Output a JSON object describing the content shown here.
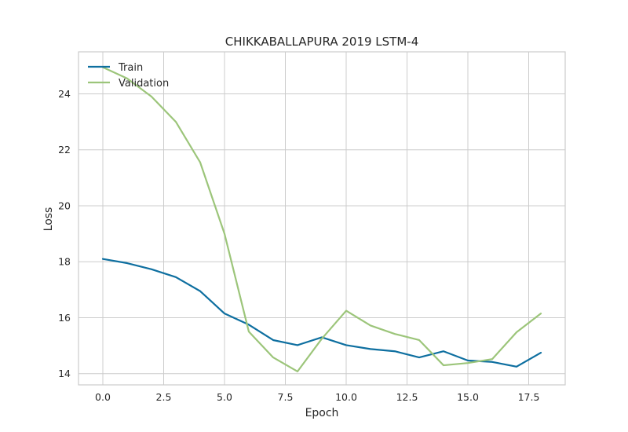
{
  "chart_data": {
    "type": "line",
    "title": "CHIKKABALLAPURA 2019 LSTM-4",
    "xlabel": "Epoch",
    "ylabel": "Loss",
    "xlim": [
      -1,
      19
    ],
    "ylim": [
      13.6,
      25.5
    ],
    "xticks": [
      0.0,
      2.5,
      5.0,
      7.5,
      10.0,
      12.5,
      15.0,
      17.5
    ],
    "xtick_labels": [
      "0.0",
      "2.5",
      "5.0",
      "7.5",
      "10.0",
      "12.5",
      "15.0",
      "17.5"
    ],
    "yticks": [
      14,
      16,
      18,
      20,
      22,
      24
    ],
    "ytick_labels": [
      "14",
      "16",
      "18",
      "20",
      "22",
      "24"
    ],
    "grid": true,
    "legend_position": "top-left",
    "x": [
      0,
      1,
      2,
      3,
      4,
      5,
      6,
      7,
      8,
      9,
      10,
      11,
      12,
      13,
      14,
      15,
      16,
      17,
      18
    ],
    "series": [
      {
        "name": "Train",
        "color": "#0e6fa0",
        "values": [
          18.1,
          17.95,
          17.73,
          17.45,
          16.95,
          16.15,
          15.75,
          15.2,
          15.02,
          15.3,
          15.02,
          14.88,
          14.8,
          14.58,
          14.8,
          14.47,
          14.42,
          14.25,
          14.75
        ]
      },
      {
        "name": "Validation",
        "color": "#9cc57a",
        "values": [
          24.95,
          24.55,
          23.9,
          23.0,
          21.55,
          19.0,
          15.5,
          14.58,
          14.08,
          15.25,
          16.25,
          15.72,
          15.42,
          15.2,
          14.3,
          14.38,
          14.52,
          15.48,
          16.15
        ]
      }
    ]
  }
}
